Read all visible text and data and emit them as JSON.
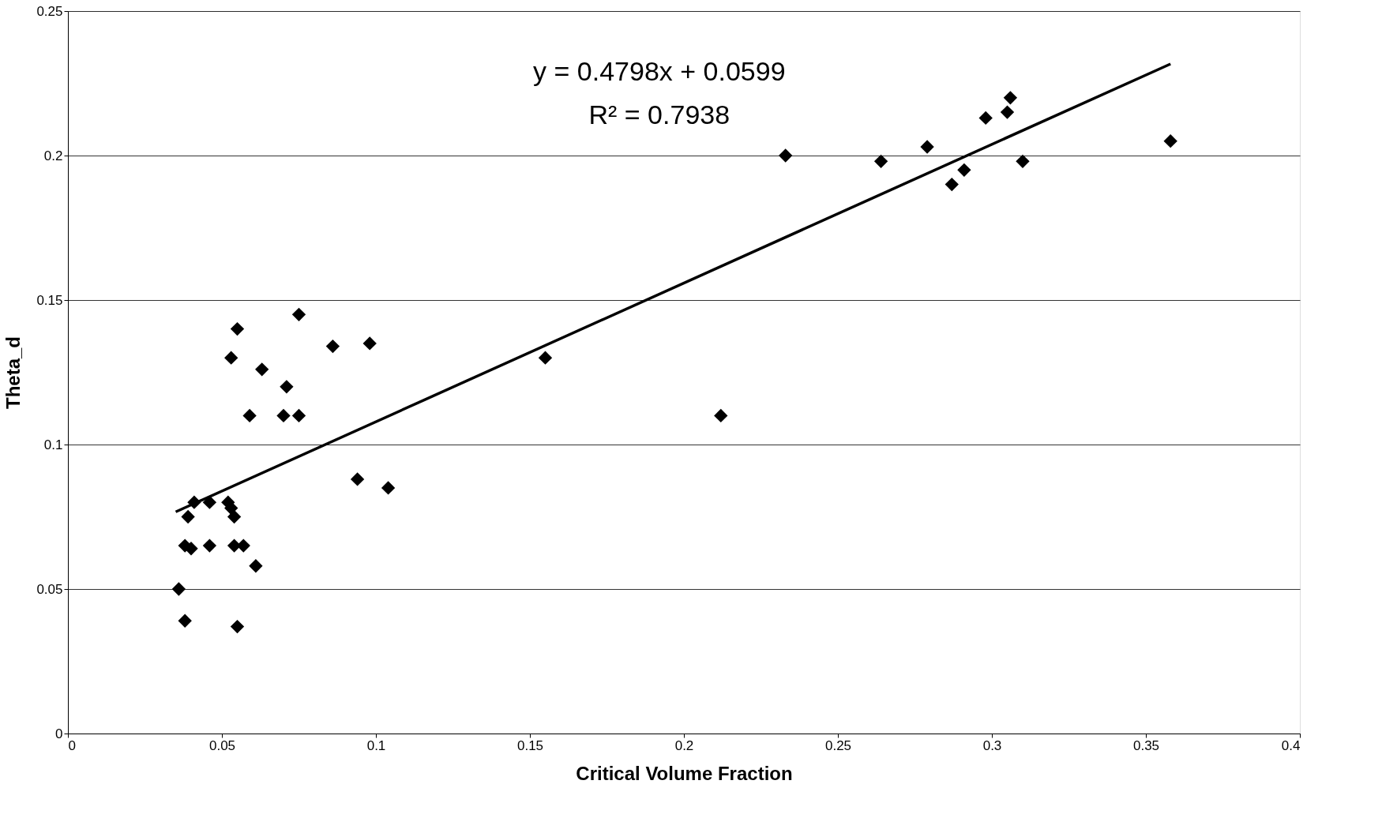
{
  "chart_data": {
    "type": "scatter",
    "xlabel": "Critical Volume Fraction",
    "ylabel": "Theta_d",
    "xlim": [
      0,
      0.4
    ],
    "xticks": [
      0,
      0.05,
      0.1,
      0.15,
      0.2,
      0.25,
      0.3,
      0.35,
      0.4
    ],
    "ylim": [
      0,
      0.25
    ],
    "yticks": [
      0,
      0.05,
      0.1,
      0.15,
      0.2,
      0.25
    ],
    "grid": "y",
    "legend": false,
    "marker": "diamond",
    "annotations": [
      "y = 0.4798x + 0.0599",
      "R² = 0.7938"
    ],
    "series": [
      {
        "color": "#000000",
        "x": [
          0.036,
          0.038,
          0.038,
          0.039,
          0.04,
          0.041,
          0.046,
          0.046,
          0.052,
          0.053,
          0.053,
          0.054,
          0.054,
          0.055,
          0.055,
          0.057,
          0.059,
          0.061,
          0.063,
          0.07,
          0.071,
          0.075,
          0.075,
          0.086,
          0.094,
          0.098,
          0.104,
          0.155,
          0.212,
          0.233,
          0.264,
          0.279,
          0.287,
          0.291,
          0.298,
          0.305,
          0.306,
          0.31,
          0.358
        ],
        "values": [
          0.05,
          0.039,
          0.065,
          0.075,
          0.064,
          0.08,
          0.08,
          0.065,
          0.08,
          0.078,
          0.13,
          0.075,
          0.065,
          0.14,
          0.037,
          0.065,
          0.11,
          0.058,
          0.126,
          0.11,
          0.12,
          0.11,
          0.145,
          0.134,
          0.088,
          0.135,
          0.085,
          0.13,
          0.11,
          0.2,
          0.198,
          0.203,
          0.19,
          0.195,
          0.213,
          0.215,
          0.22,
          0.198,
          0.205
        ]
      },
      {
        "type": "line",
        "marker": "none",
        "color": "#000000",
        "x": [
          0.035,
          0.358
        ],
        "values": [
          0.0767,
          0.2317
        ]
      }
    ]
  }
}
